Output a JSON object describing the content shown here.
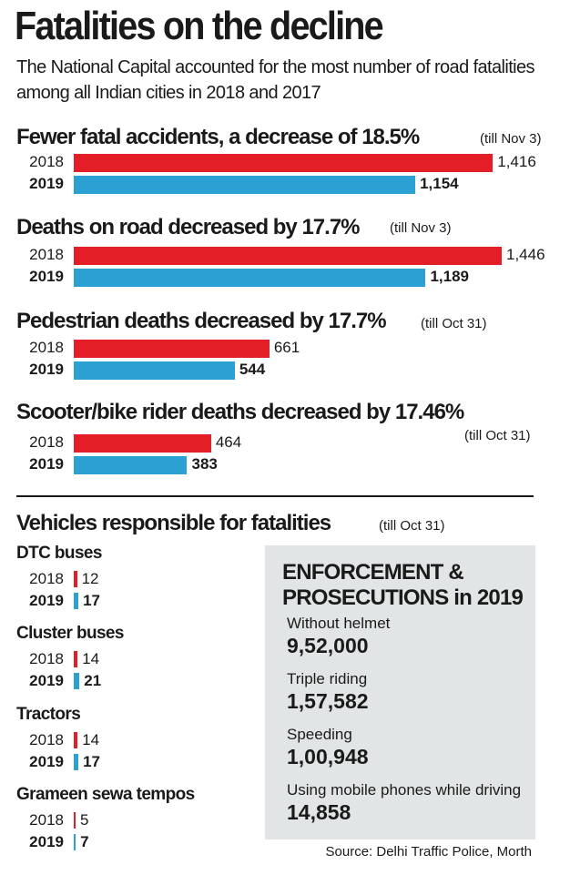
{
  "header": {
    "title": "Fatalities on the decline",
    "subtitle": "The National Capital accounted for the most number of road fatalities among all Indian cities in 2018 and 2017"
  },
  "colors": {
    "y2018": "#e31e26",
    "y2019": "#2aa1d2",
    "box": "#e2e5e6"
  },
  "chart_data": [
    {
      "type": "bar",
      "orientation": "horizontal",
      "title": "Fewer fatal accidents, a decrease of 18.5%",
      "period": "(till Nov 3)",
      "categories": [
        "2018",
        "2019"
      ],
      "values": [
        1416,
        1154
      ],
      "labels": [
        "1,416",
        "1,154"
      ]
    },
    {
      "type": "bar",
      "orientation": "horizontal",
      "title": "Deaths on road decreased by 17.7%",
      "period": "(till Nov 3)",
      "categories": [
        "2018",
        "2019"
      ],
      "values": [
        1446,
        1189
      ],
      "labels": [
        "1,446",
        "1,189"
      ]
    },
    {
      "type": "bar",
      "orientation": "horizontal",
      "title": "Pedestrian deaths decreased by 17.7%",
      "period": "(till Oct 31)",
      "categories": [
        "2018",
        "2019"
      ],
      "values": [
        661,
        544
      ],
      "labels": [
        "661",
        "544"
      ]
    },
    {
      "type": "bar",
      "orientation": "horizontal",
      "title": "Scooter/bike rider deaths decreased by 17.46%",
      "period": "(till Oct 31)",
      "categories": [
        "2018",
        "2019"
      ],
      "values": [
        464,
        383
      ],
      "labels": [
        "464",
        "383"
      ]
    },
    {
      "type": "bar",
      "orientation": "horizontal",
      "title": "Vehicles responsible for fatalities",
      "period": "(till Oct 31)",
      "groups": [
        {
          "name": "DTC buses",
          "categories": [
            "2018",
            "2019"
          ],
          "values": [
            12,
            17
          ]
        },
        {
          "name": "Cluster buses",
          "categories": [
            "2018",
            "2019"
          ],
          "values": [
            14,
            21
          ]
        },
        {
          "name": "Tractors",
          "categories": [
            "2018",
            "2019"
          ],
          "values": [
            14,
            17
          ]
        },
        {
          "name": "Grameen sewa tempos",
          "categories": [
            "2018",
            "2019"
          ],
          "values": [
            5,
            7
          ]
        }
      ]
    }
  ],
  "enforcement": {
    "title_line1": "ENFORCEMENT &",
    "title_line2": "PROSECUTIONS in 2019",
    "items": [
      {
        "label": "Without helmet",
        "value": "9,52,000"
      },
      {
        "label": "Triple riding",
        "value": "1,57,582"
      },
      {
        "label": "Speeding",
        "value": "1,00,948"
      },
      {
        "label": "Using mobile phones while driving",
        "value": "14,858"
      }
    ]
  },
  "source": "Source: Delhi Traffic Police, Morth"
}
